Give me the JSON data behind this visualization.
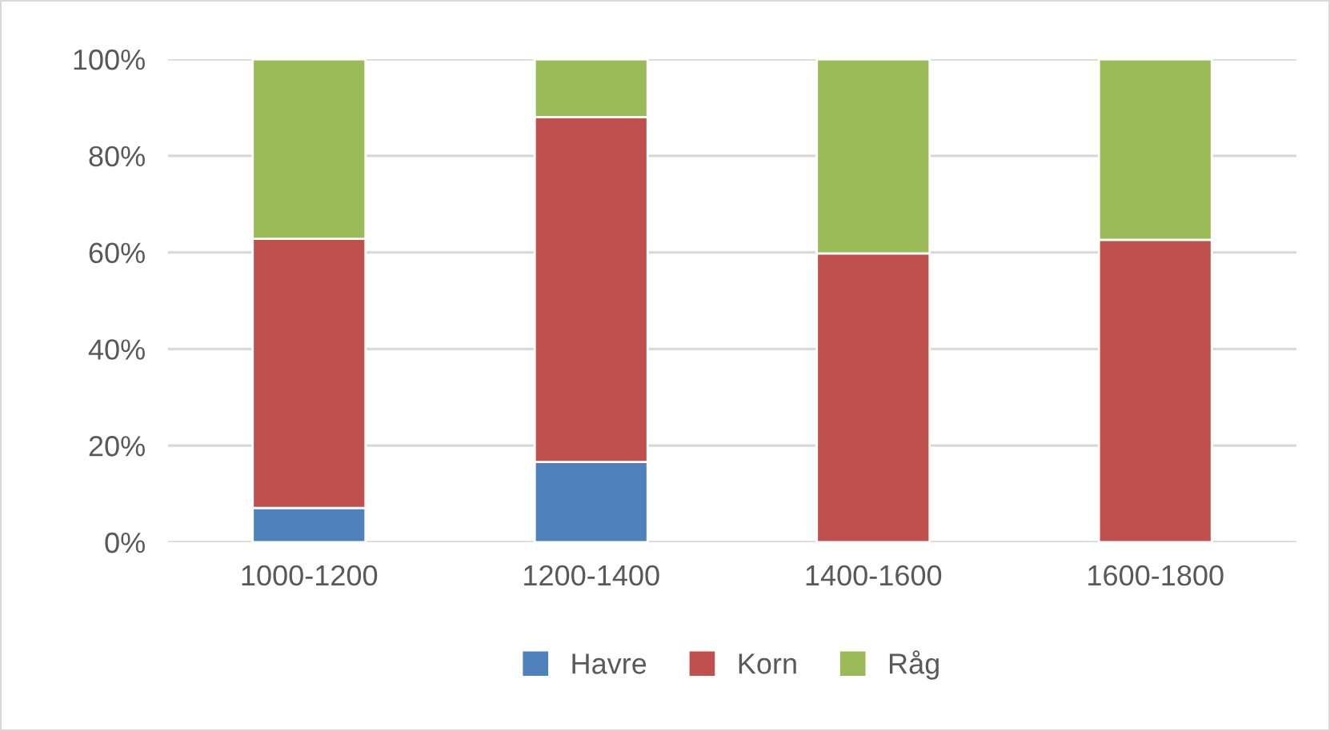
{
  "chart_data": {
    "type": "bar",
    "stacked": true,
    "categories": [
      "1000-1200",
      "1200-1400",
      "1400-1600",
      "1600-1800"
    ],
    "series": [
      {
        "name": "Havre",
        "color": "#4f81bd",
        "values": [
          7.1,
          16.6,
          0,
          0
        ]
      },
      {
        "name": "Korn",
        "color": "#c0504d",
        "values": [
          55.7,
          71.4,
          59.8,
          62.6
        ]
      },
      {
        "name": "Råg",
        "color": "#9bbb59",
        "values": [
          37.2,
          12.0,
          40.2,
          37.4
        ]
      }
    ],
    "ylim": [
      0,
      100
    ],
    "yticks": [
      {
        "value": 0,
        "label": "0%"
      },
      {
        "value": 20,
        "label": "20%"
      },
      {
        "value": 40,
        "label": "40%"
      },
      {
        "value": 60,
        "label": "60%"
      },
      {
        "value": 80,
        "label": "80%"
      },
      {
        "value": 100,
        "label": "100%"
      }
    ],
    "grid": "y",
    "legend": "bottom"
  }
}
